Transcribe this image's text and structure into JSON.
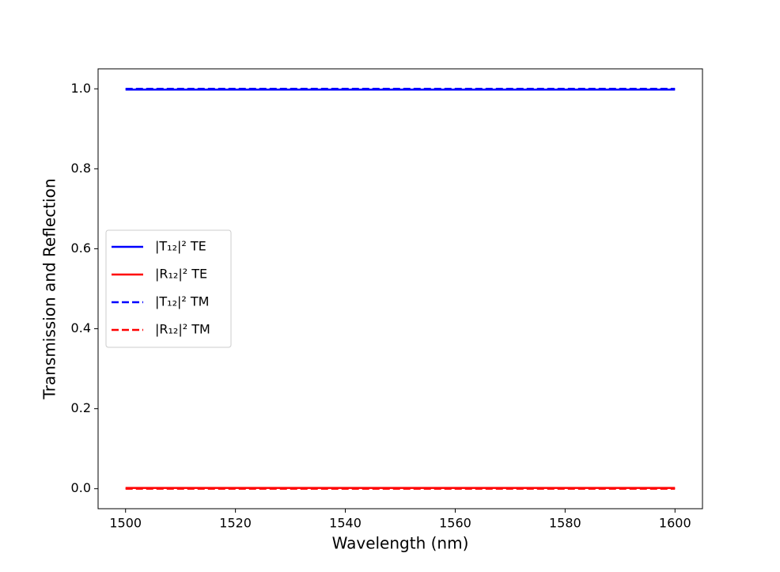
{
  "chart_data": {
    "type": "line",
    "xlabel": "Wavelength (nm)",
    "ylabel": "Transmission and Reflection",
    "x": [
      1500,
      1600
    ],
    "series": [
      {
        "name": "|T₁₂|² TE",
        "color": "#0000ff",
        "linestyle": "solid",
        "values": [
          0.998,
          0.998
        ]
      },
      {
        "name": "|R₁₂|² TE",
        "color": "#ff0000",
        "linestyle": "solid",
        "values": [
          0.002,
          0.002
        ]
      },
      {
        "name": "|T₁₂|² TM",
        "color": "#0000ff",
        "linestyle": "dashed",
        "values": [
          1.0,
          1.0
        ]
      },
      {
        "name": "|R₁₂|² TM",
        "color": "#ff0000",
        "linestyle": "dashed",
        "values": [
          0.0,
          0.0
        ]
      }
    ],
    "xlim": [
      1495,
      1605
    ],
    "ylim": [
      -0.05,
      1.05
    ],
    "xticks": [
      1500,
      1520,
      1540,
      1560,
      1580,
      1600
    ],
    "yticks": [
      {
        "value": 0,
        "label": "0.0"
      },
      0.2,
      0.4,
      0.6,
      0.8,
      {
        "value": 1,
        "label": "1.0"
      }
    ],
    "legend": "center left",
    "grid": false
  }
}
